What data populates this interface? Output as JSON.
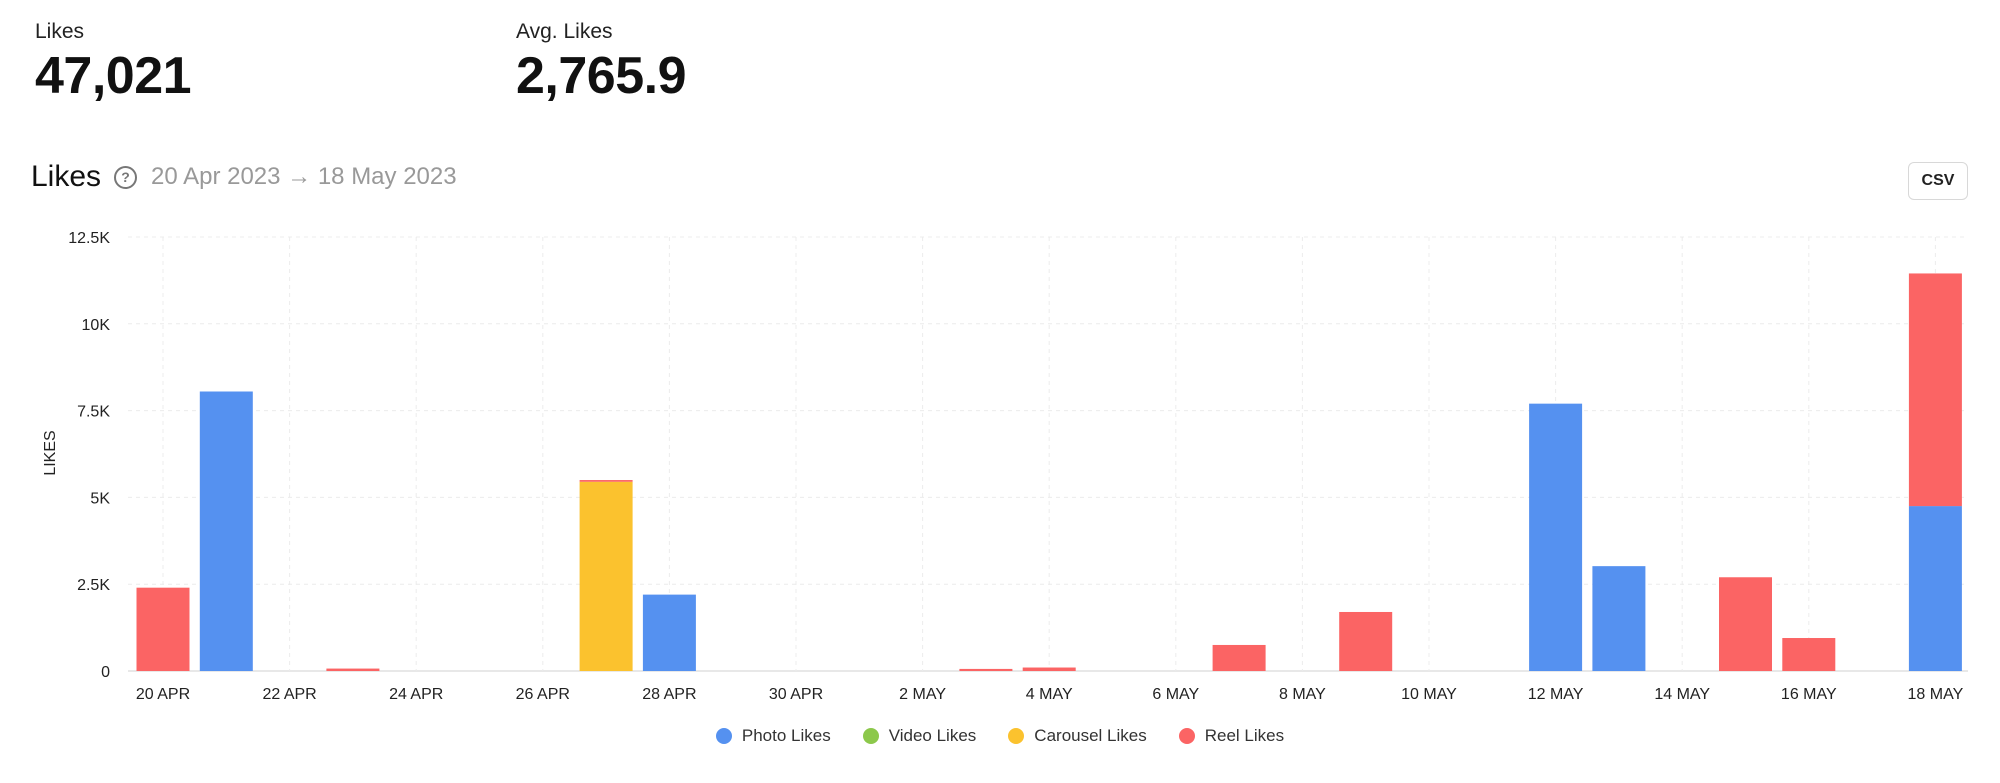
{
  "stats": {
    "likes": {
      "label": "Likes",
      "value": "47,021"
    },
    "avg_likes": {
      "label": "Avg. Likes",
      "value": "2,765.9"
    }
  },
  "header": {
    "title": "Likes",
    "date_range": "20 Apr 2023 → 18 May 2023",
    "csv_label": "CSV",
    "help_icon": "question-circle-icon"
  },
  "chart_data": {
    "type": "bar",
    "stacked": true,
    "title": "Likes",
    "ylabel": "LIKES",
    "xlabel": "",
    "ylim": [
      0,
      12500
    ],
    "y_ticks": [
      "0",
      "2.5K",
      "5K",
      "7.5K",
      "10K",
      "12.5K"
    ],
    "y_tick_values": [
      0,
      2500,
      5000,
      7500,
      10000,
      12500
    ],
    "x_ticks": [
      "20 APR",
      "22 APR",
      "24 APR",
      "26 APR",
      "28 APR",
      "30 APR",
      "2 MAY",
      "4 MAY",
      "6 MAY",
      "8 MAY",
      "10 MAY",
      "12 MAY",
      "14 MAY",
      "16 MAY",
      "18 MAY"
    ],
    "categories": [
      "20 Apr",
      "21 Apr",
      "22 Apr",
      "23 Apr",
      "24 Apr",
      "25 Apr",
      "26 Apr",
      "27 Apr",
      "28 Apr",
      "29 Apr",
      "30 Apr",
      "1 May",
      "2 May",
      "3 May",
      "4 May",
      "5 May",
      "6 May",
      "7 May",
      "8 May",
      "9 May",
      "10 May",
      "11 May",
      "12 May",
      "13 May",
      "14 May",
      "15 May",
      "16 May",
      "17 May",
      "18 May"
    ],
    "series": [
      {
        "name": "Photo Likes",
        "color": "#5591f0",
        "values": [
          0,
          8050,
          0,
          0,
          0,
          0,
          0,
          0,
          2200,
          0,
          0,
          0,
          0,
          0,
          0,
          0,
          0,
          0,
          0,
          0,
          0,
          0,
          7700,
          3020,
          0,
          0,
          0,
          0,
          4750
        ]
      },
      {
        "name": "Video Likes",
        "color": "#8cc84b",
        "values": [
          0,
          0,
          0,
          0,
          0,
          0,
          0,
          0,
          0,
          0,
          0,
          0,
          0,
          0,
          0,
          0,
          0,
          0,
          0,
          0,
          0,
          0,
          0,
          0,
          0,
          0,
          0,
          0,
          0
        ]
      },
      {
        "name": "Carousel Likes",
        "color": "#fbc22e",
        "values": [
          0,
          0,
          0,
          0,
          0,
          0,
          0,
          5450,
          0,
          0,
          0,
          0,
          0,
          0,
          0,
          0,
          0,
          0,
          0,
          0,
          0,
          0,
          0,
          0,
          0,
          0,
          0,
          0,
          0
        ]
      },
      {
        "name": "Reel Likes",
        "color": "#fb6464",
        "values": [
          2400,
          0,
          0,
          70,
          0,
          0,
          0,
          50,
          0,
          0,
          0,
          0,
          0,
          60,
          100,
          0,
          0,
          750,
          0,
          1700,
          0,
          0,
          0,
          0,
          0,
          2700,
          950,
          0,
          6700
        ]
      }
    ],
    "grid": true,
    "legend_position": "bottom-center"
  }
}
